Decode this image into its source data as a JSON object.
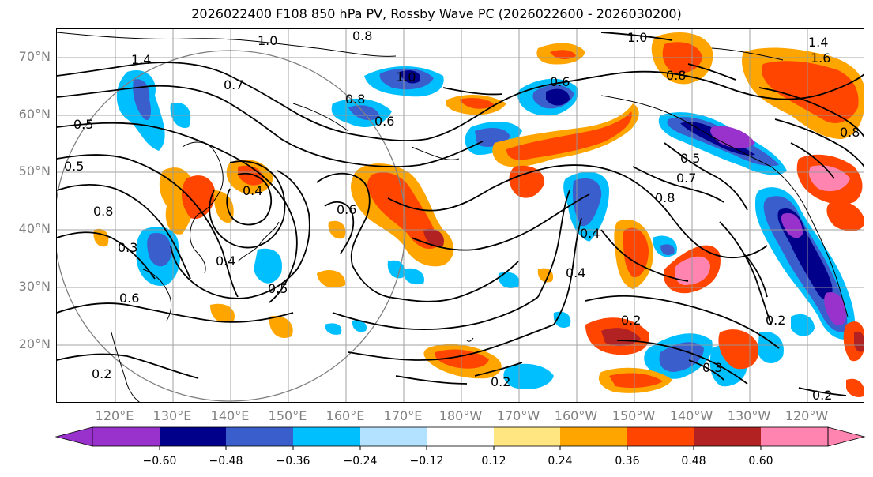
{
  "title": "2026022400 F108 850 hPa PV, Rossby Wave PC (2026022600 - 2026030200)",
  "lat_labels": [
    "70°N",
    "60°N",
    "50°N",
    "40°N",
    "30°N",
    "20°N"
  ],
  "lon_labels": [
    "120°E",
    "130°E",
    "140°E",
    "150°E",
    "160°E",
    "170°E",
    "180°W",
    "170°W",
    "160°W",
    "150°W",
    "140°W",
    "130°W",
    "120°W"
  ],
  "contour_labels": [
    "1.0",
    "0.8",
    "1.4",
    "1.0",
    "0.7",
    "0.5",
    "0.6",
    "0.8",
    "0.6",
    "1.0",
    "0.8",
    "1.4",
    "1.6",
    "0.8",
    "0.5",
    "0.7",
    "0.8",
    "0.4",
    "0.6",
    "0.8",
    "0.5",
    "0.4",
    "0.3",
    "0.2",
    "0.2",
    "0.2",
    "0.2",
    "0.3",
    "0.2",
    "0.4",
    "0.6",
    "0.5",
    "0.4"
  ],
  "colorbar": {
    "ticks": [
      "−0.60",
      "−0.48",
      "−0.36",
      "−0.24",
      "−0.12",
      "0.12",
      "0.24",
      "0.36",
      "0.48",
      "0.60"
    ],
    "colors": [
      "#9932cc",
      "#00008b",
      "#3a5fcd",
      "#00bfff",
      "#b2e2ff",
      "#ffffff",
      "#ffe680",
      "#ffa500",
      "#ff4500",
      "#b22222",
      "#ff85b0"
    ]
  },
  "shading_colors": {
    "purple": "#9932cc",
    "navy": "#00008b",
    "blue": "#3a5fcd",
    "cyan": "#00bfff",
    "lightblue": "#b2e2ff",
    "yellow": "#ffe680",
    "orange": "#ffa500",
    "redorange": "#ff4500",
    "darkred": "#b22222",
    "pink": "#ff85b0"
  }
}
